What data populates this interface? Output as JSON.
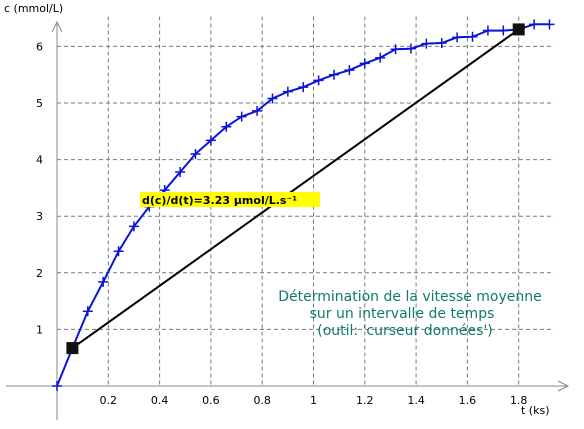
{
  "chart_data": {
    "type": "line",
    "title": "",
    "xlabel": "t (ks)",
    "ylabel": "c (mmol/L)",
    "xlim": [
      -0.1,
      1.97
    ],
    "ylim": [
      -0.1,
      6.6
    ],
    "xticks": [
      "0.2",
      "0.4",
      "0.6",
      "0.8",
      "1",
      "1.2",
      "1.4",
      "1.6",
      "1.8"
    ],
    "yticks": [
      "1",
      "2",
      "3",
      "4",
      "5",
      "6"
    ],
    "grid": true,
    "colors": {
      "series": "#0a14d6",
      "chord": "#000000",
      "note": "#0f7b6c",
      "highlight": "#ffff00"
    },
    "series": [
      {
        "x": [
          0,
          0.06,
          0.12,
          0.18,
          0.24,
          0.3,
          0.36,
          0.42,
          0.48,
          0.54,
          0.6,
          0.66,
          0.72,
          0.78,
          0.84,
          0.9,
          0.96,
          1.02,
          1.08,
          1.14,
          1.2,
          1.26,
          1.32,
          1.38,
          1.44,
          1.5,
          1.56,
          1.62,
          1.68,
          1.74,
          1.8,
          1.86,
          1.92
        ],
        "y": [
          0,
          0.67,
          1.32,
          1.84,
          2.38,
          2.82,
          3.17,
          3.46,
          3.78,
          4.1,
          4.34,
          4.58,
          4.76,
          4.86,
          5.08,
          5.2,
          5.28,
          5.4,
          5.5,
          5.58,
          5.7,
          5.8,
          5.95,
          5.96,
          6.05,
          6.06,
          6.16,
          6.17,
          6.28,
          6.28,
          6.3,
          6.39,
          6.39
        ]
      }
    ],
    "chord": {
      "x": [
        0.06,
        1.8
      ],
      "y": [
        0.67,
        6.3
      ]
    },
    "annotations": {
      "slope": "d(c)/d(t)=3.23 µmol/L.s⁻¹",
      "note": [
        "Détermination de la vitesse moyenne",
        "sur un intervalle de temps",
        "(outil: 'curseur données')"
      ]
    }
  }
}
